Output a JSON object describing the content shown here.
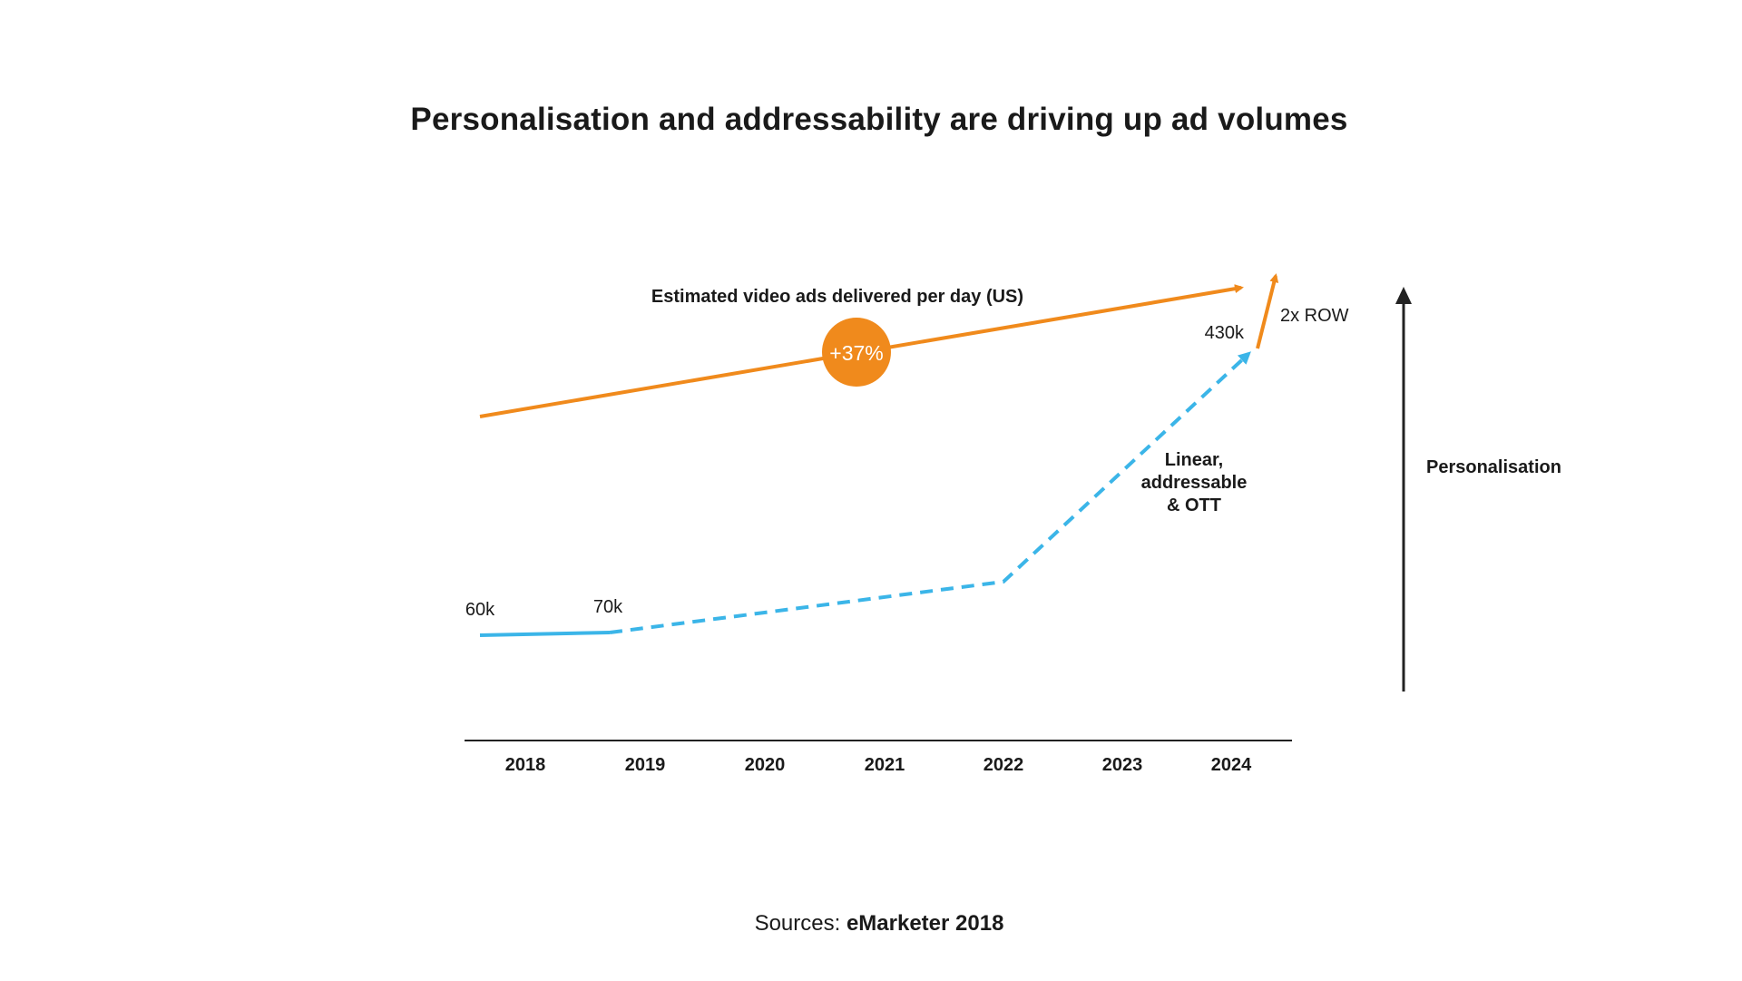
{
  "title": "Personalisation and addressability are driving up ad volumes",
  "chart_data": {
    "type": "line",
    "categories": [
      "2018",
      "2019",
      "2020",
      "2021",
      "2022",
      "2023",
      "2024"
    ],
    "series": [
      {
        "name": "Estimated video ads delivered per day (US)",
        "color": "#f08a1c",
        "style": "solid-arrow",
        "badge": "+37%"
      },
      {
        "name": "Linear, addressable & OTT",
        "name_lines": [
          "Linear,",
          "addressable",
          "& OTT"
        ],
        "color": "#3bb5e8",
        "style": "dashed-arrow",
        "points": [
          {
            "x": "2018",
            "y": 60,
            "label": "60k"
          },
          {
            "x": "2019",
            "y": 70,
            "label": "70k"
          },
          {
            "x": "2022",
            "y": 130
          },
          {
            "x": "2024",
            "y": 430,
            "label": "430k"
          }
        ]
      }
    ],
    "annotations": [
      {
        "text": "2x ROW",
        "color": "#f08a1c"
      }
    ],
    "side_axis": {
      "label": "Personalisation",
      "direction": "up"
    },
    "ylim": [
      0,
      500
    ],
    "grid": false
  },
  "footer": {
    "prefix": "Sources:",
    "source": "eMarketer 2018"
  }
}
